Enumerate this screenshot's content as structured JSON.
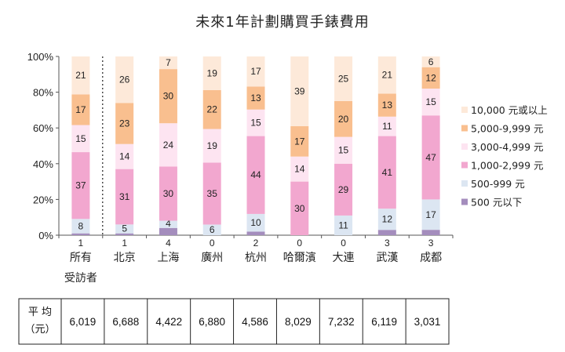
{
  "chart_data": {
    "type": "bar",
    "stacked": true,
    "normalized": true,
    "title": "未來1年計劃購買手錶費用",
    "yticks": [
      "0%",
      "20%",
      "40%",
      "60%",
      "80%",
      "100%"
    ],
    "ylim": [
      0,
      100
    ],
    "categories": [
      "所有受訪者",
      "北京",
      "上海",
      "廣州",
      "杭州",
      "哈爾濱",
      "大連",
      "武漢",
      "成都"
    ],
    "category_lines": [
      [
        "所有",
        "受訪者"
      ],
      [
        "北京"
      ],
      [
        "上海"
      ],
      [
        "廣州"
      ],
      [
        "杭州"
      ],
      [
        "哈爾濱"
      ],
      [
        "大連"
      ],
      [
        "武漢"
      ],
      [
        "成都"
      ]
    ],
    "series": [
      {
        "name": "500 元以下",
        "color": "#a48dbd",
        "values": [
          1,
          1,
          4,
          0,
          2,
          0,
          0,
          3,
          3
        ]
      },
      {
        "name": "500-999 元",
        "color": "#dce6f2",
        "values": [
          8,
          5,
          4,
          6,
          10,
          0,
          11,
          12,
          17
        ]
      },
      {
        "name": "1,000-2,999 元",
        "color": "#f2a7cf",
        "values": [
          37,
          31,
          30,
          35,
          44,
          30,
          29,
          41,
          47
        ]
      },
      {
        "name": "3,000-4,999 元",
        "color": "#fde4f1",
        "values": [
          15,
          14,
          24,
          19,
          15,
          14,
          15,
          11,
          15
        ]
      },
      {
        "name": "5,000-9,999 元",
        "color": "#f9bf8f",
        "values": [
          17,
          23,
          30,
          22,
          13,
          17,
          20,
          13,
          12
        ]
      },
      {
        "name": "10,000 元或以上",
        "color": "#fde9d9",
        "values": [
          21,
          26,
          7,
          19,
          17,
          39,
          25,
          21,
          6
        ]
      }
    ],
    "legend_position": "right",
    "divider_after_first": true
  },
  "average_table": {
    "label_lines": [
      "平 均",
      "（元）"
    ],
    "values": [
      "6,019",
      "6,688",
      "4,422",
      "6,880",
      "4,586",
      "8,029",
      "7,232",
      "6,119",
      "3,031"
    ]
  }
}
